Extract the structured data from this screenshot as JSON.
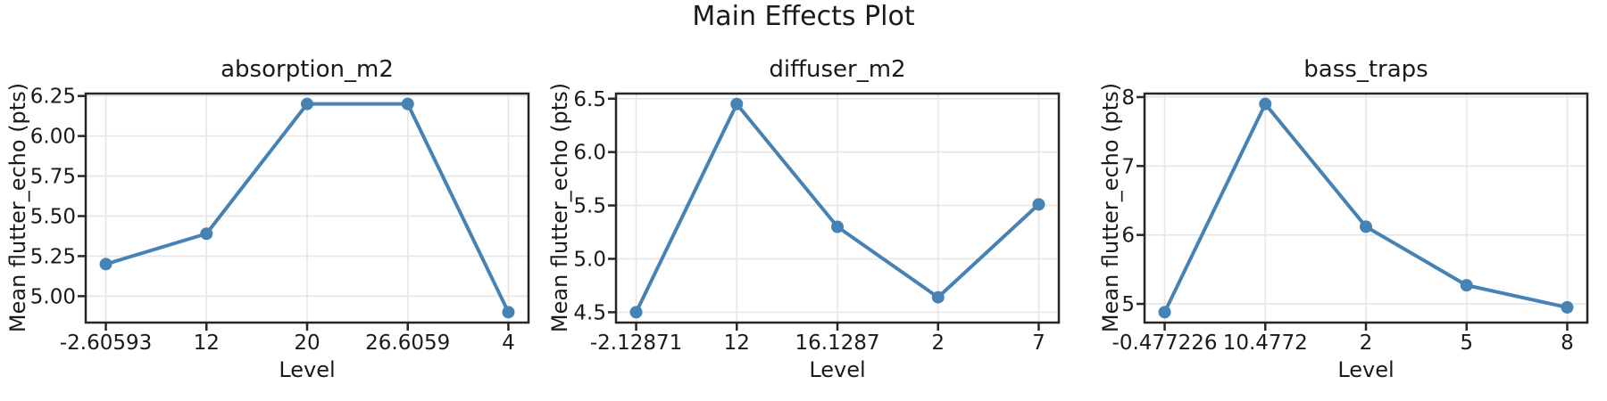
{
  "figure": {
    "title": "Main Effects Plot",
    "background_color": "#ffffff",
    "line_color": "#4682B4",
    "grid_color": "#e6e6e6",
    "spine_color": "#262626",
    "text_color": "#1a1a1a"
  },
  "chart_data": [
    {
      "type": "line",
      "title": "absorption_m2",
      "xlabel": "Level",
      "ylabel": "Mean flutter_echo (pts)",
      "categories": [
        "-2.60593",
        "12",
        "20",
        "26.6059",
        "4"
      ],
      "values": [
        5.2,
        5.39,
        6.2,
        6.2,
        4.9
      ],
      "ytick_values": [
        5.0,
        5.25,
        5.5,
        5.75,
        6.0,
        6.25
      ],
      "ytick_labels": [
        "5.00",
        "5.25",
        "5.50",
        "5.75",
        "6.00",
        "6.25"
      ],
      "ylim": [
        4.835,
        6.265
      ],
      "grid": true,
      "legend": null,
      "marker": "circle"
    },
    {
      "type": "line",
      "title": "diffuser_m2",
      "xlabel": "Level",
      "ylabel": "Mean flutter_echo (pts)",
      "categories": [
        "-2.12871",
        "12",
        "16.1287",
        "2",
        "7"
      ],
      "values": [
        4.5,
        6.45,
        5.3,
        4.64,
        5.51
      ],
      "ytick_values": [
        4.5,
        5.0,
        5.5,
        6.0,
        6.5
      ],
      "ytick_labels": [
        "4.5",
        "5.0",
        "5.5",
        "6.0",
        "6.5"
      ],
      "ylim": [
        4.403,
        6.548
      ],
      "grid": true,
      "legend": null,
      "marker": "circle"
    },
    {
      "type": "line",
      "title": "bass_traps",
      "xlabel": "Level",
      "ylabel": "Mean flutter_echo (pts)",
      "categories": [
        "-0.477226",
        "10.4772",
        "2",
        "5",
        "8"
      ],
      "values": [
        4.88,
        7.9,
        6.12,
        5.27,
        4.95
      ],
      "ytick_values": [
        5,
        6,
        7,
        8
      ],
      "ytick_labels": [
        "5",
        "6",
        "7",
        "8"
      ],
      "ylim": [
        4.729,
        8.051
      ],
      "grid": true,
      "legend": null,
      "marker": "circle"
    }
  ]
}
